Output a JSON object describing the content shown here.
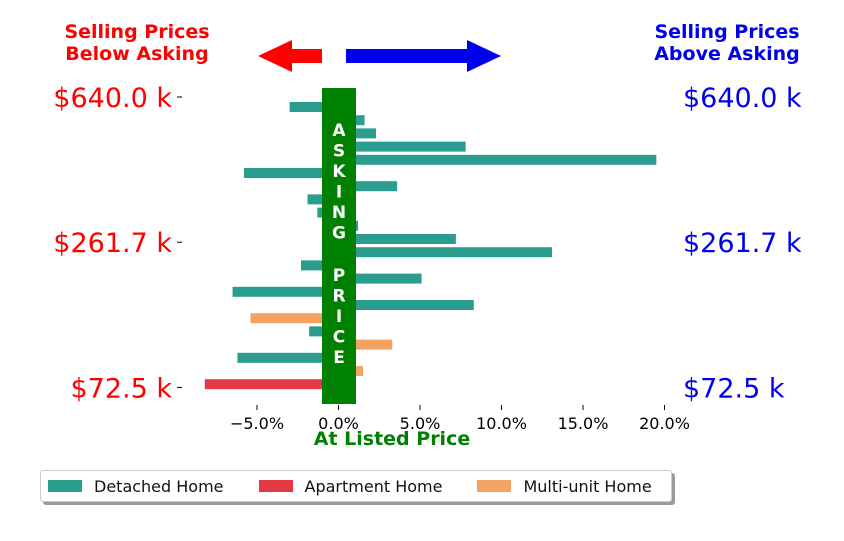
{
  "header": {
    "left_line1": "Selling Prices",
    "left_line2": "Below Asking",
    "right_line1": "Selling Prices",
    "right_line2": "Above Asking"
  },
  "colors": {
    "below": "#ff0000",
    "above": "#0000ee",
    "asking": "#008000",
    "detached": "#2a9d8f",
    "apartment": "#e63946",
    "multiunit": "#f4a261"
  },
  "asking_band_text": "ASKING PRICE",
  "chart_data": {
    "type": "bar",
    "orientation": "horizontal",
    "xlabel": "At Listed Price",
    "x_ticks": [
      "−5.0%",
      "0.0%",
      "5.0%",
      "10.0%",
      "15.0%",
      "20.0%"
    ],
    "x_tick_values": [
      -5,
      0,
      5,
      10,
      15,
      20
    ],
    "xlim": [
      -9.5,
      21
    ],
    "y_ticks_left": [
      "$640.0 k",
      "$261.7 k",
      "$72.5 k"
    ],
    "y_ticks_right": [
      "$640.0 k",
      "$261.7 k",
      "$72.5 k"
    ],
    "y_tick_rows": [
      0,
      11,
      22
    ],
    "bars": [
      {
        "row": 0,
        "value": -3.0,
        "series": "Detached Home"
      },
      {
        "row": 1,
        "value": 1.6,
        "series": "Detached Home"
      },
      {
        "row": 2,
        "value": 2.3,
        "series": "Detached Home"
      },
      {
        "row": 3,
        "value": 7.8,
        "series": "Detached Home"
      },
      {
        "row": 4,
        "value": 19.5,
        "series": "Detached Home"
      },
      {
        "row": 5,
        "value": -5.8,
        "series": "Detached Home"
      },
      {
        "row": 6,
        "value": 3.6,
        "series": "Detached Home"
      },
      {
        "row": 7,
        "value": -1.9,
        "series": "Detached Home"
      },
      {
        "row": 8,
        "value": -1.3,
        "series": "Detached Home"
      },
      {
        "row": 9,
        "value": 1.2,
        "series": "Detached Home"
      },
      {
        "row": 10,
        "value": 7.2,
        "series": "Detached Home"
      },
      {
        "row": 11,
        "value": 13.1,
        "series": "Detached Home"
      },
      {
        "row": 12,
        "value": -2.3,
        "series": "Detached Home"
      },
      {
        "row": 13,
        "value": 5.1,
        "series": "Detached Home"
      },
      {
        "row": 14,
        "value": -6.5,
        "series": "Detached Home"
      },
      {
        "row": 15,
        "value": 8.3,
        "series": "Detached Home"
      },
      {
        "row": 16,
        "value": -5.4,
        "series": "Multi-unit Home"
      },
      {
        "row": 17,
        "value": -1.8,
        "series": "Detached Home"
      },
      {
        "row": 18,
        "value": 3.3,
        "series": "Multi-unit Home"
      },
      {
        "row": 19,
        "value": -6.2,
        "series": "Detached Home"
      },
      {
        "row": 20,
        "value": 1.5,
        "series": "Multi-unit Home"
      },
      {
        "row": 21,
        "value": -8.2,
        "series": "Apartment Home"
      }
    ],
    "legend": {
      "placement": "bottom",
      "entries": [
        {
          "name": "Detached Home",
          "color": "#2a9d8f"
        },
        {
          "name": "Apartment Home",
          "color": "#e63946"
        },
        {
          "name": "Multi-unit Home",
          "color": "#f4a261"
        }
      ]
    },
    "grid": false
  }
}
